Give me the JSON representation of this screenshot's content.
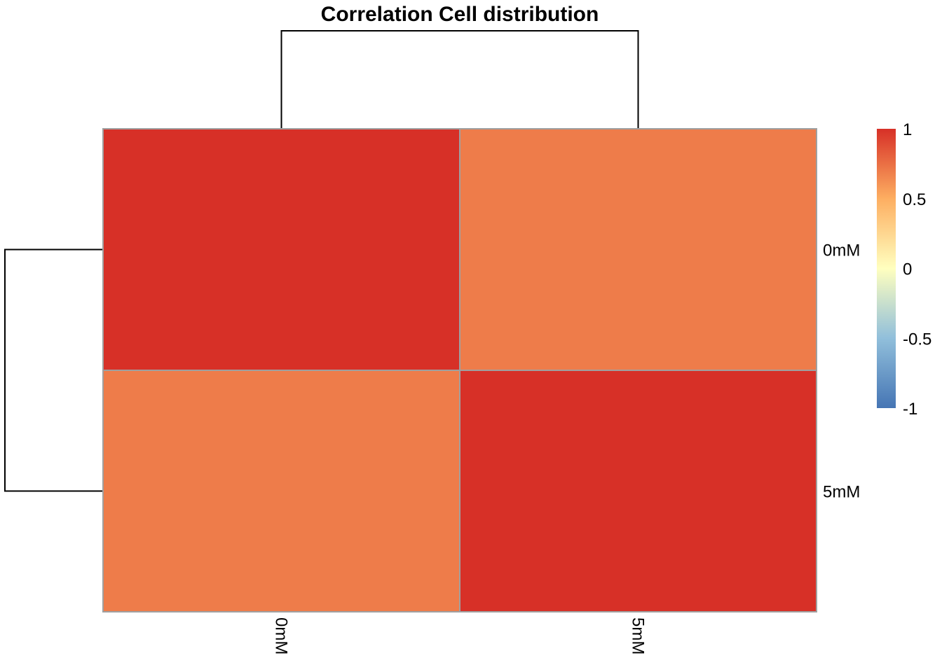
{
  "chart_data": {
    "type": "heatmap",
    "title": "Correlation Cell distribution",
    "rows": [
      "0mM",
      "5mM"
    ],
    "columns": [
      "0mM",
      "5mM"
    ],
    "values": [
      [
        1.0,
        0.7
      ],
      [
        0.7,
        1.0
      ]
    ],
    "row_dendrogram": true,
    "column_dendrogram": true,
    "colorbar": {
      "range": [
        -1,
        1
      ],
      "ticks": [
        1,
        0.5,
        0,
        -0.5,
        -1
      ],
      "tick_labels": [
        "1",
        "0.5",
        "0",
        "-0.5",
        "-1"
      ],
      "colors": {
        "-1": "#4575B4",
        "-0.5": "#91BFDB",
        "0": "#FFFFBF",
        "0.5": "#FDAE61",
        "1": "#D73027"
      }
    },
    "cell_border_color": "#A0A0A0"
  }
}
